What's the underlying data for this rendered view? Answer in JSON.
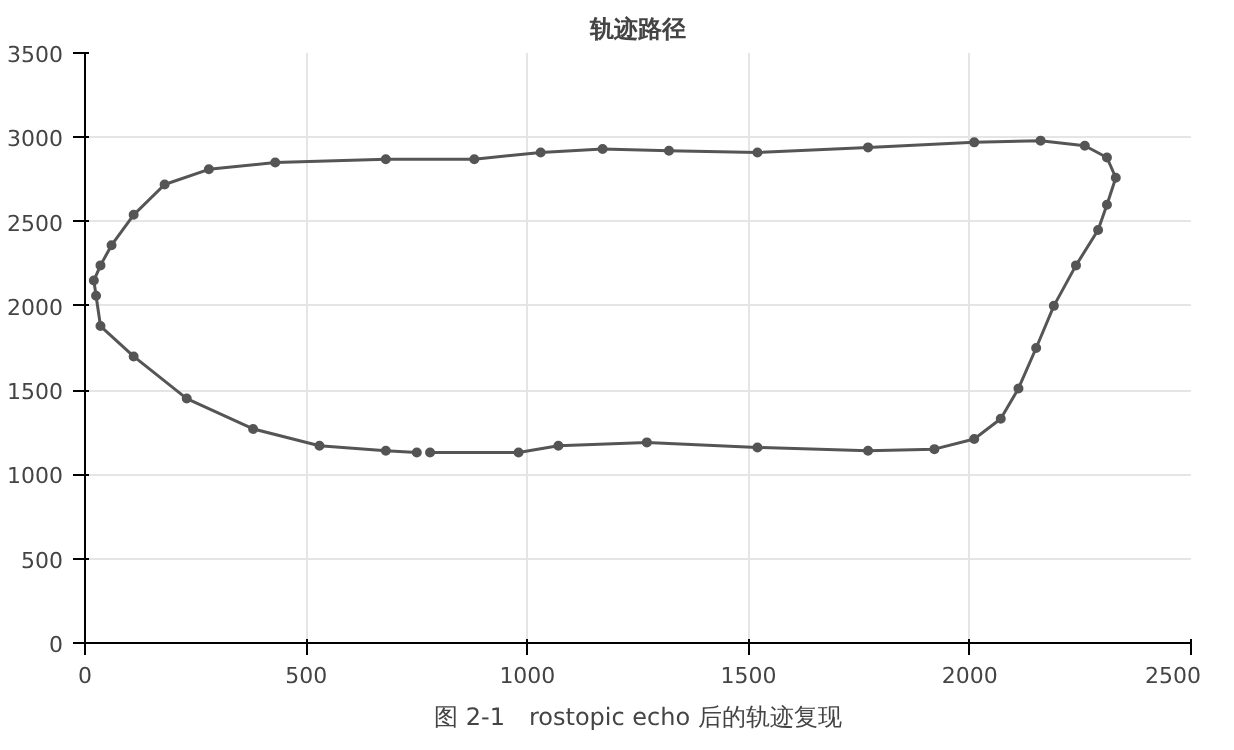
{
  "chart_data": {
    "type": "line",
    "title": "轨迹路径",
    "annotations": [
      "图 2-1　rostopic echo 后的轨迹复现"
    ],
    "series": [
      {
        "color": "#555555",
        "x": [
          780,
          980,
          1070,
          1270,
          1520,
          1770,
          1920,
          2010,
          2070,
          2110,
          2150,
          2190,
          2240,
          2290,
          2310,
          2330,
          2310,
          2260,
          2160,
          2010,
          1770,
          1520,
          1320,
          1170,
          1030,
          880,
          680,
          430,
          280,
          180,
          110,
          60,
          35,
          20,
          25,
          35,
          110,
          230,
          380,
          530,
          680,
          750
        ],
        "values": [
          1130,
          1130,
          1170,
          1190,
          1160,
          1140,
          1150,
          1210,
          1330,
          1510,
          1750,
          2000,
          2240,
          2450,
          2600,
          2760,
          2880,
          2950,
          2980,
          2970,
          2940,
          2910,
          2920,
          2930,
          2910,
          2870,
          2870,
          2850,
          2810,
          2720,
          2540,
          2360,
          2240,
          2150,
          2060,
          1880,
          1700,
          1450,
          1270,
          1170,
          1140,
          1130
        ]
      }
    ],
    "xlim": [
      0,
      2500
    ],
    "ylim": [
      0,
      3500
    ],
    "xticks": [
      0,
      500,
      1000,
      1500,
      2000,
      2500
    ],
    "yticks": [
      0,
      500,
      1000,
      1500,
      2000,
      2500,
      3000,
      3500
    ],
    "grid": true,
    "marker": "circle",
    "line_style": "solid"
  }
}
